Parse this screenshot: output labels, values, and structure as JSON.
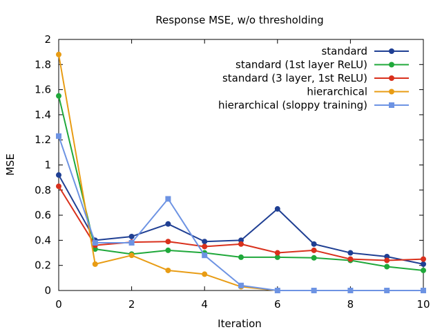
{
  "chart_data": {
    "type": "line",
    "title": "Response MSE, w/o thresholding",
    "xlabel": "Iteration",
    "ylabel": "MSE",
    "xlim": [
      0,
      10
    ],
    "ylim": [
      0,
      2
    ],
    "xticks": [
      0,
      2,
      4,
      6,
      8,
      10
    ],
    "yticks": [
      0,
      0.2,
      0.4,
      0.6,
      0.8,
      1,
      1.2,
      1.4,
      1.6,
      1.8,
      2
    ],
    "grid": false,
    "legend_position": "top-right",
    "x": [
      0,
      1,
      2,
      3,
      4,
      5,
      6,
      7,
      8,
      9,
      10
    ],
    "series": [
      {
        "name": "standard",
        "color": "#1f3f93",
        "marker": "circle",
        "values": [
          0.92,
          0.4,
          0.43,
          0.53,
          0.39,
          0.4,
          0.65,
          0.37,
          0.3,
          0.27,
          0.21
        ]
      },
      {
        "name": "standard (1st layer ReLU)",
        "color": "#1fa83a",
        "marker": "circle",
        "values": [
          1.55,
          0.33,
          0.29,
          0.32,
          0.3,
          0.265,
          0.265,
          0.26,
          0.24,
          0.19,
          0.16
        ]
      },
      {
        "name": "standard (3 layer, 1st ReLU)",
        "color": "#d9301c",
        "marker": "circle",
        "values": [
          0.83,
          0.36,
          0.385,
          0.39,
          0.35,
          0.37,
          0.3,
          0.32,
          0.25,
          0.24,
          0.25
        ]
      },
      {
        "name": "hierarchical",
        "color": "#e89c14",
        "marker": "circle",
        "values": [
          1.88,
          0.21,
          0.28,
          0.16,
          0.13,
          0.03,
          0.0,
          0.0,
          0.0,
          0.0,
          0.0
        ]
      },
      {
        "name": "hierarchical (sloppy training)",
        "color": "#6d93e3",
        "marker": "square",
        "values": [
          1.23,
          0.38,
          0.38,
          0.73,
          0.28,
          0.04,
          0.0,
          0.0,
          0.0,
          0.0,
          0.0
        ]
      }
    ]
  }
}
